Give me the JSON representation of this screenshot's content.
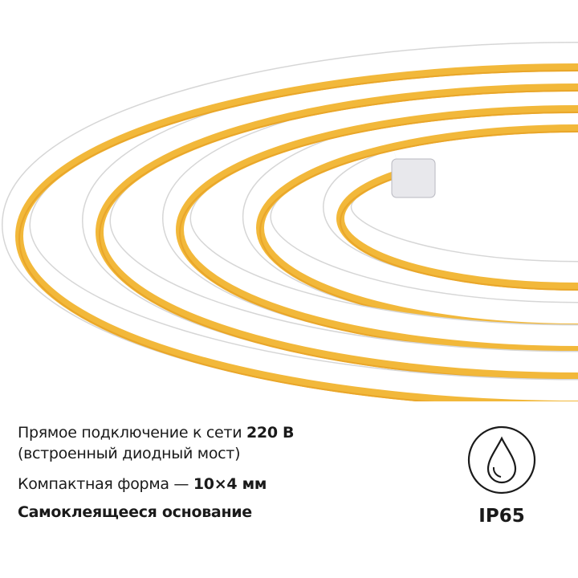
{
  "features": {
    "line1_text": "Прямое подключение к сети ",
    "line1_bold": "220 В",
    "line2_text": "(встроенный диодный мост)",
    "line3_text": "Компактная форма — ",
    "line3_bold": "10×4 мм",
    "line4_text": "Самоклеящееся основание"
  },
  "badge": {
    "icon": "water-drop-icon",
    "label": "IP65"
  },
  "colors": {
    "led": "#f2b83a",
    "tube": "#ffffff",
    "text": "#1a1a1a"
  }
}
